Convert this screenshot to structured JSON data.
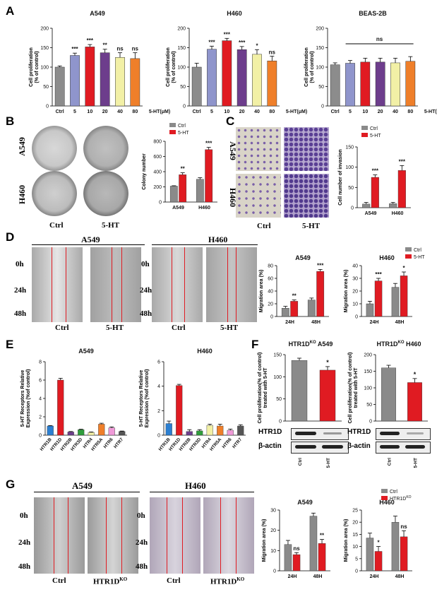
{
  "panel_labels": {
    "A": "A",
    "B": "B",
    "C": "C",
    "D": "D",
    "E": "E",
    "F": "F",
    "G": "G"
  },
  "colors": {
    "gray": "#8a8a8a",
    "ctrl": "#8c8c8c",
    "red": "#e01b22",
    "blue": "#8f95cc",
    "purple": "#6d3d8c",
    "yellow": "#f2f0a6",
    "orange": "#ef7f2a",
    "cyan": "#2b7fd1",
    "green": "#2e9d3b",
    "violet": "#9f65cc",
    "pink": "#f09ad8",
    "darkgray": "#555555"
  },
  "ctrl_label": "Ctrl",
  "ht_label": "5-HT",
  "ko_label_base": "HTR1D",
  "ko_label_sup": "KO",
  "times": {
    "t0": "0h",
    "t24": "24h",
    "t48": "48h"
  },
  "cell_lines": {
    "a549": "A549",
    "h460": "H460"
  },
  "tick_labels": {
    "h24": "24H",
    "h48": "48H"
  },
  "beta_actin": "β-actin",
  "htr1d": "HTR1D",
  "chart_data": [
    {
      "id": "A1",
      "type": "bar",
      "title": "A549",
      "ylabel": "Cell proliferation (% of control)",
      "xlabel_suffix": "5-HT(μM)",
      "categories": [
        "Ctrl",
        "5",
        "10",
        "20",
        "40",
        "80"
      ],
      "values": [
        100,
        130,
        152,
        137,
        125,
        122
      ],
      "errors": [
        3,
        6,
        6,
        9,
        12,
        15
      ],
      "sig": [
        "",
        "***",
        "***",
        "**",
        "ns",
        "ns"
      ],
      "ylim": [
        0,
        200
      ],
      "yticks": [
        0,
        50,
        100,
        150,
        200
      ]
    },
    {
      "id": "A2",
      "type": "bar",
      "title": "H460",
      "ylabel": "Cell proliferation (% of control)",
      "xlabel_suffix": "5-HT(μM)",
      "categories": [
        "Ctrl",
        "5",
        "10",
        "20",
        "40",
        "80"
      ],
      "values": [
        100,
        146,
        168,
        145,
        133,
        116
      ],
      "errors": [
        10,
        8,
        6,
        8,
        12,
        12
      ],
      "sig": [
        "",
        "***",
        "***",
        "***",
        "*",
        "ns"
      ],
      "ylim": [
        0,
        200
      ],
      "yticks": [
        0,
        50,
        100,
        150,
        200
      ]
    },
    {
      "id": "A3",
      "type": "bar",
      "title": "BEAS-2B",
      "ylabel": "Cell proliferation (% of control)",
      "xlabel_suffix": "5-HT(μM)",
      "categories": [
        "Ctrl",
        "5",
        "10",
        "20",
        "40",
        "80"
      ],
      "values": [
        106,
        110,
        113,
        113,
        111,
        115
      ],
      "errors": [
        5,
        7,
        10,
        10,
        12,
        12
      ],
      "sig": [
        "ns"
      ],
      "ylim": [
        0,
        200
      ],
      "yticks": [
        0,
        50,
        100,
        150,
        200
      ]
    },
    {
      "id": "B",
      "type": "bar",
      "ylabel": "Colony number",
      "categories": [
        "A549",
        "H460"
      ],
      "series": [
        {
          "name": "Ctrl",
          "values": [
            210,
            300
          ],
          "errors": [
            5,
            20
          ]
        },
        {
          "name": "5-HT",
          "values": [
            360,
            690
          ],
          "errors": [
            25,
            30
          ]
        }
      ],
      "sig": [
        "**",
        "***"
      ],
      "ylim": [
        0,
        800
      ],
      "yticks": [
        0,
        200,
        400,
        600,
        800
      ]
    },
    {
      "id": "C",
      "type": "bar",
      "ylabel": "Cell number of invasion",
      "categories": [
        "A549",
        "H460"
      ],
      "series": [
        {
          "name": "Ctrl",
          "values": [
            9,
            10
          ],
          "errors": [
            4,
            3
          ]
        },
        {
          "name": "5-HT",
          "values": [
            75,
            92
          ],
          "errors": [
            6,
            12
          ]
        }
      ],
      "sig": [
        "***",
        "***"
      ],
      "ylim": [
        0,
        150
      ],
      "yticks": [
        0,
        50,
        100,
        150
      ]
    },
    {
      "id": "D1",
      "type": "bar",
      "title": "A549",
      "ylabel": "Migration area (%)",
      "categories": [
        "24H",
        "48H"
      ],
      "series": [
        {
          "name": "Ctrl",
          "values": [
            13,
            26
          ],
          "errors": [
            3,
            3
          ]
        },
        {
          "name": "5-HT",
          "values": [
            24,
            71
          ],
          "errors": [
            2,
            3
          ]
        }
      ],
      "sig": [
        "**",
        "***"
      ],
      "ylim": [
        0,
        80
      ],
      "yticks": [
        0,
        20,
        40,
        60,
        80
      ]
    },
    {
      "id": "D2",
      "type": "bar",
      "title": "H460",
      "ylabel": "Migration area (%)",
      "categories": [
        "24H",
        "48H"
      ],
      "series": [
        {
          "name": "Ctrl",
          "values": [
            10,
            23
          ],
          "errors": [
            2,
            3
          ]
        },
        {
          "name": "5-HT",
          "values": [
            28,
            32
          ],
          "errors": [
            2,
            3
          ]
        }
      ],
      "sig": [
        "***",
        "*"
      ],
      "ylim": [
        0,
        40
      ],
      "yticks": [
        0,
        10,
        20,
        30,
        40
      ]
    },
    {
      "id": "E1",
      "type": "bar",
      "title": "A549",
      "ylabel": "5-HT Receptors Relative Expression (%of control)",
      "categories": [
        "HTR1B",
        "HTR1D",
        "HTR2B",
        "HTR3D",
        "HTR4",
        "HTR5A",
        "HTR6",
        "HTR7"
      ],
      "values": [
        1.0,
        6.0,
        0.35,
        0.6,
        0.3,
        1.2,
        0.8,
        0.4
      ],
      "errors": [
        0.05,
        0.2,
        0.05,
        0.05,
        0.05,
        0.1,
        0.1,
        0.05
      ],
      "ylim": [
        0,
        8
      ],
      "yticks": [
        0,
        2,
        4,
        6,
        8
      ]
    },
    {
      "id": "E2",
      "type": "bar",
      "title": "H460",
      "ylabel": "5-HT Receptors Relative Expression (%of control)",
      "categories": [
        "HTR1B",
        "HTR1D",
        "HTR2B",
        "HTR3D",
        "HTR4",
        "HTR5A",
        "HTR6",
        "HTR7"
      ],
      "values": [
        0.95,
        4.05,
        0.3,
        0.35,
        0.8,
        0.75,
        0.4,
        0.75
      ],
      "errors": [
        0.2,
        0.1,
        0.15,
        0.1,
        0.1,
        0.15,
        0.1,
        0.1
      ],
      "ylim": [
        0,
        6
      ],
      "yticks": [
        0,
        2,
        4,
        6
      ]
    },
    {
      "id": "F1",
      "type": "bar",
      "title_base": "HTR1D",
      "title_sup": "KO",
      "title_rest": " A549",
      "ylabel": "Cell proliferation(% of control) treated with 5-HT",
      "categories": [
        "Ctrl",
        "5-HT"
      ],
      "values": [
        137,
        115
      ],
      "errors": [
        5,
        8
      ],
      "sig": [
        "",
        "*"
      ],
      "ylim": [
        0,
        150
      ],
      "yticks": [
        0,
        50,
        100,
        150
      ]
    },
    {
      "id": "F2",
      "type": "bar",
      "title_base": "HTR1D",
      "title_sup": "KO",
      "title_rest": " H460",
      "ylabel": "Cell proliferation(% of control) treated with 5-HT",
      "categories": [
        "Ctrl",
        "5-HT"
      ],
      "values": [
        160,
        116
      ],
      "errors": [
        8,
        12
      ],
      "sig": [
        "",
        "*"
      ],
      "ylim": [
        0,
        200
      ],
      "yticks": [
        0,
        50,
        100,
        150,
        200
      ]
    },
    {
      "id": "G1",
      "type": "bar",
      "title": "A549",
      "ylabel": "Migration area (%)",
      "categories": [
        "24H",
        "48H"
      ],
      "series": [
        {
          "name": "Ctrl",
          "values": [
            13,
            27
          ],
          "errors": [
            2,
            1.5
          ]
        },
        {
          "name": "HTR1D",
          "values": [
            8,
            13.5
          ],
          "errors": [
            1,
            2
          ]
        }
      ],
      "sig": [
        "ns",
        "**"
      ],
      "ylim": [
        0,
        30
      ],
      "yticks": [
        0,
        10,
        20,
        30
      ]
    },
    {
      "id": "G2",
      "type": "bar",
      "title": "H460",
      "ylabel": "Migration area (%)",
      "categories": [
        "24H",
        "48H"
      ],
      "series": [
        {
          "name": "Ctrl",
          "values": [
            13.5,
            20
          ],
          "errors": [
            2,
            2.5
          ]
        },
        {
          "name": "HTR1D",
          "values": [
            8,
            14
          ],
          "errors": [
            2,
            2.5
          ]
        }
      ],
      "sig": [
        "*",
        "ns"
      ],
      "ylim": [
        0,
        25
      ],
      "yticks": [
        0,
        5,
        10,
        15,
        20,
        25
      ]
    }
  ]
}
